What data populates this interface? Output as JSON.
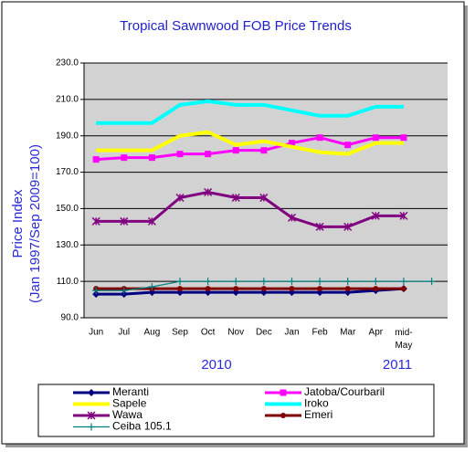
{
  "chart_data": {
    "type": "line",
    "title": "Tropical Sawnwood FOB Price Trends",
    "ylabel": [
      "Price Index",
      "(Jan 1997/Sep 2009=100)"
    ],
    "year_labels": [
      "2010",
      "2011"
    ],
    "categories": [
      "Jun",
      "Jul",
      "Aug",
      "Sep",
      "Oct",
      "Nov",
      "Dec",
      "Jan",
      "Feb",
      "Mar",
      "Apr",
      "mid-May",
      null
    ],
    "ylim": [
      90,
      230
    ],
    "yticks": [
      {
        "value": 90,
        "label": "90.0"
      },
      {
        "value": 110,
        "label": "110.0"
      },
      {
        "value": 130,
        "label": "130.0"
      },
      {
        "value": 150,
        "label": "150.0"
      },
      {
        "value": 170,
        "label": "170.0"
      },
      {
        "value": 190,
        "label": "190.0"
      },
      {
        "value": 210,
        "label": "210.0"
      },
      {
        "value": 230,
        "label": "230.0"
      }
    ],
    "grid": true,
    "series": [
      {
        "name": "Meranti",
        "color": "#000080",
        "marker": "diamond",
        "values": [
          103,
          103,
          104,
          104,
          104,
          104,
          104,
          104,
          104,
          104,
          105,
          106,
          null
        ]
      },
      {
        "name": "Jatoba/Courbaril",
        "color": "#ff00ff",
        "marker": "square",
        "values": [
          177,
          178,
          178,
          180,
          180,
          182,
          182,
          186,
          189,
          185,
          189,
          189,
          null
        ]
      },
      {
        "name": "Sapele",
        "color": "#ffff00",
        "marker": "none",
        "values": [
          182,
          182,
          182,
          190,
          192,
          185,
          187,
          184,
          181,
          180,
          186,
          186,
          null
        ]
      },
      {
        "name": "Iroko",
        "color": "#00ffff",
        "marker": "none",
        "values": [
          197,
          197,
          197,
          207,
          209,
          207,
          207,
          204,
          201,
          201,
          206,
          206,
          null
        ]
      },
      {
        "name": "Wawa",
        "color": "#800080",
        "marker": "star",
        "values": [
          143,
          143,
          143,
          156,
          159,
          156,
          156,
          145,
          140,
          140,
          146,
          146,
          null
        ]
      },
      {
        "name": "Emeri",
        "color": "#800000",
        "marker": "circle",
        "values": [
          106,
          106,
          106,
          106,
          106,
          106,
          106,
          106,
          106,
          106,
          106,
          106,
          null
        ]
      },
      {
        "name": "Ceiba  105.1",
        "color": "#008080",
        "marker": "plus",
        "values": [
          105,
          105,
          107,
          110,
          110,
          110,
          110,
          110,
          110,
          110,
          110,
          110,
          110
        ]
      }
    ]
  }
}
